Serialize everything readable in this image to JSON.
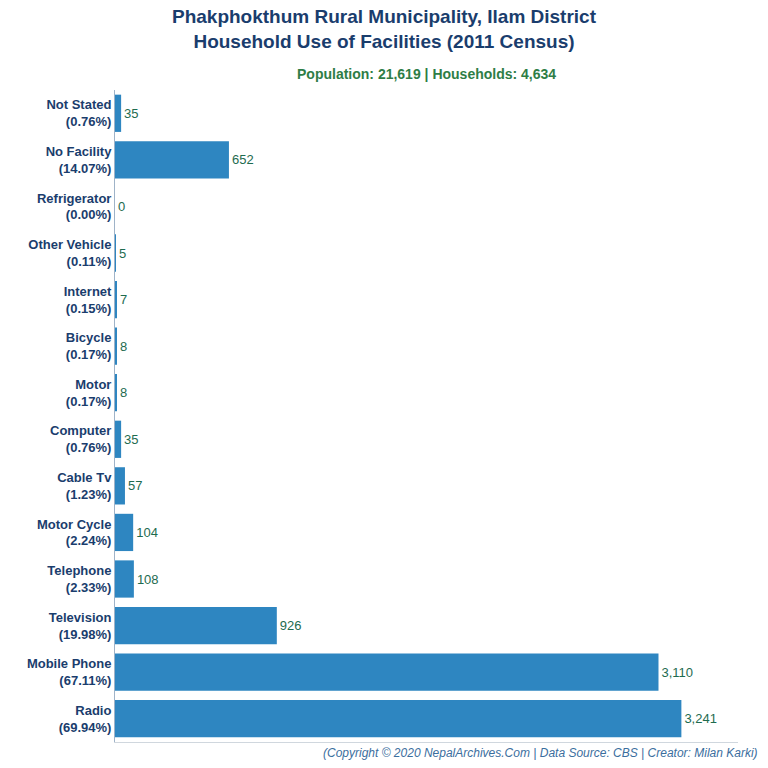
{
  "chart_data": {
    "type": "bar",
    "orientation": "horizontal",
    "title": "Phakphokthum Rural Municipality, Ilam District\nHousehold Use of Facilities (2011 Census)",
    "subtitle": "Population: 21,619 | Households: 4,634",
    "annotations": [
      "(Copyright © 2020 NepalArchives.Com | Data Source: CBS | Creator: Milan Karki)"
    ],
    "categories": [
      "Not Stated\n(0.76%)",
      "No Facility\n(14.07%)",
      "Refrigerator\n(0.00%)",
      "Other Vehicle\n(0.11%)",
      "Internet\n(0.15%)",
      "Bicycle\n(0.17%)",
      "Motor\n(0.17%)",
      "Computer\n(0.76%)",
      "Cable Tv\n(1.23%)",
      "Motor Cycle\n(2.24%)",
      "Telephone\n(2.33%)",
      "Television\n(19.98%)",
      "Mobile Phone\n(67.11%)",
      "Radio\n(69.94%)"
    ],
    "values": [
      35,
      652,
      0,
      5,
      7,
      8,
      8,
      35,
      57,
      104,
      108,
      926,
      3110,
      3241
    ],
    "value_labels": [
      "35",
      "652",
      "0",
      "5",
      "7",
      "8",
      "8",
      "35",
      "57",
      "104",
      "108",
      "926",
      "3,110",
      "3,241"
    ],
    "color": "#2e86c1",
    "xlim": [
      0,
      3565
    ],
    "xticks": [],
    "tick_labels": "y",
    "grid": false,
    "data_labels": true
  }
}
